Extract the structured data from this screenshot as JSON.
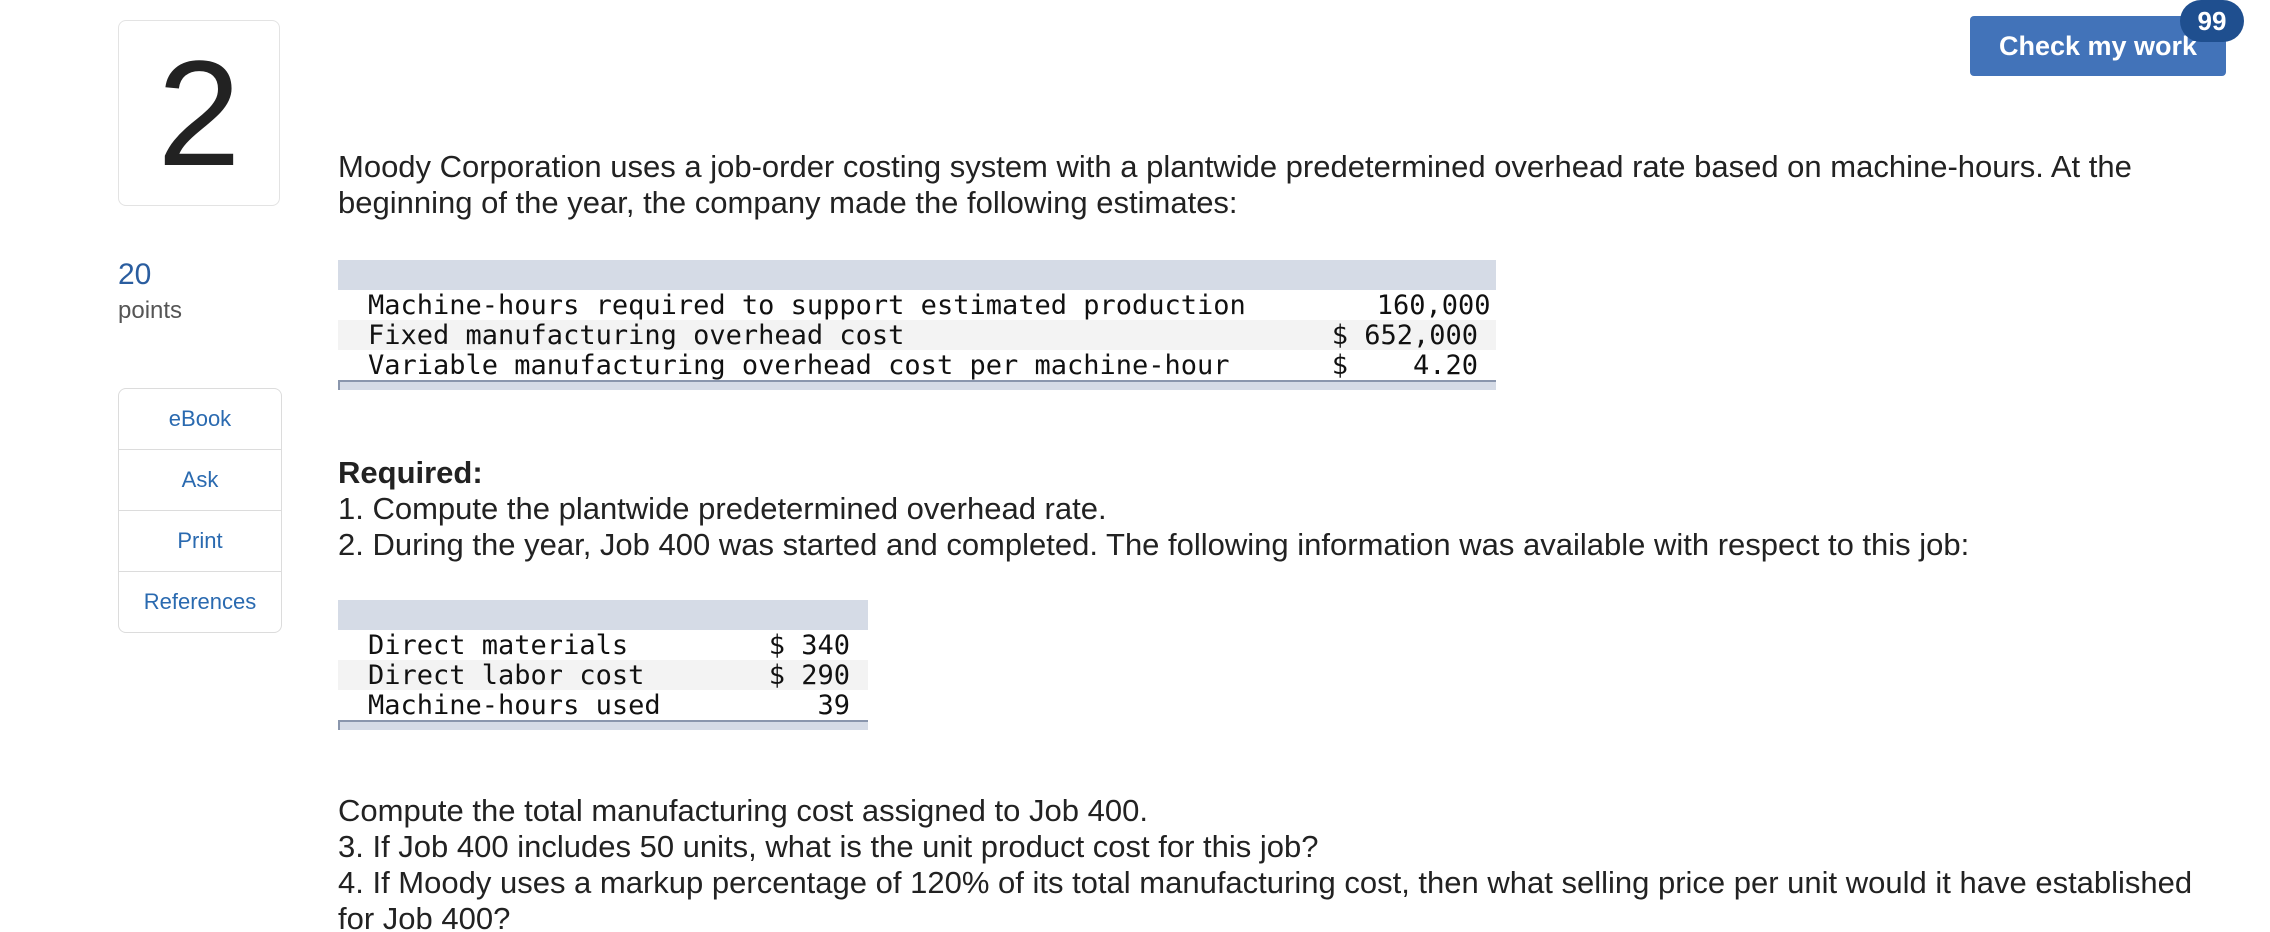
{
  "question": {
    "number": "2",
    "points_value": "20",
    "points_label": "points"
  },
  "tools": [
    {
      "label": "eBook"
    },
    {
      "label": "Ask"
    },
    {
      "label": "Print"
    },
    {
      "label": "References"
    }
  ],
  "header": {
    "check_label": "Check my work",
    "badge": "99"
  },
  "content": {
    "intro": "Moody Corporation uses a job-order costing system with a plantwide predetermined overhead rate based on machine-hours. At the beginning of the year, the company made the following estimates:",
    "estimates": [
      {
        "label": "Machine-hours required to support estimated production",
        "value": "   160,000"
      },
      {
        "label": "Fixed manufacturing overhead cost",
        "value": "$ 652,000"
      },
      {
        "label": "Variable manufacturing overhead cost per machine-hour",
        "value": "$    4.20"
      }
    ],
    "required_title": "Required:",
    "req1": "1. Compute the plantwide predetermined overhead rate.",
    "req2": "2. During the year, Job 400 was started and completed. The following information was available with respect to this job:",
    "job": [
      {
        "label": "Direct materials",
        "value": "$ 340"
      },
      {
        "label": "Direct labor cost",
        "value": "$ 290"
      },
      {
        "label": "Machine-hours used",
        "value": "39"
      }
    ],
    "req2b": "Compute the total manufacturing cost assigned to Job 400.",
    "req3": "3. If Job 400 includes 50 units, what is the unit product cost for this job?",
    "req4": "4. If Moody uses a markup percentage of 120% of its total manufacturing cost, then what selling price per unit would it have established for Job 400?"
  }
}
